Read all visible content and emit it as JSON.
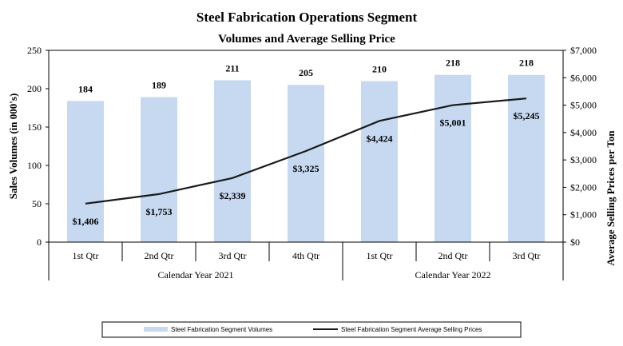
{
  "chart_data": {
    "type": "bar+line",
    "title": "Steel Fabrication  Operations Segment",
    "subtitle": "Volumes and Average Selling Price",
    "categories": [
      "1st Qtr",
      "2nd Qtr",
      "3rd Qtr",
      "4th Qtr",
      "1st Qtr",
      "2nd Qtr",
      "3rd Qtr"
    ],
    "groups": [
      {
        "label": "Calendar Year 2021",
        "count": 4
      },
      {
        "label": "Calendar Year 2022",
        "count": 3
      }
    ],
    "series": [
      {
        "name": "Steel Fabrication Segment Volumes",
        "kind": "bar",
        "axis": "left",
        "color": "#c6d9f1",
        "values": [
          184,
          189,
          211,
          205,
          210,
          218,
          218
        ],
        "labels": [
          "184",
          "189",
          "211",
          "205",
          "210",
          "218",
          "218"
        ]
      },
      {
        "name": "Steel Fabrication Segment Average Selling Prices",
        "kind": "line",
        "axis": "right",
        "color": "#1a1a1a",
        "values": [
          1406,
          1753,
          2339,
          3325,
          4424,
          5001,
          5245
        ],
        "labels": [
          "$1,406",
          "$1,753",
          "$2,339",
          "$3,325",
          "$4,424",
          "$5,001",
          "$5,245"
        ]
      }
    ],
    "left_axis": {
      "label": "Sales Volumes (in 000's)",
      "min": 0,
      "max": 250,
      "ticks": [
        0,
        50,
        100,
        150,
        200,
        250
      ],
      "tick_labels": [
        "0",
        "50",
        "100",
        "150",
        "200",
        "250"
      ]
    },
    "right_axis": {
      "label": "Average Selling Prices per Ton",
      "min": 0,
      "max": 7000,
      "ticks": [
        0,
        1000,
        2000,
        3000,
        4000,
        5000,
        6000,
        7000
      ],
      "tick_labels": [
        "$0",
        "$1,000",
        "$2,000",
        "$3,000",
        "$4,000",
        "$5,000",
        "$6,000",
        "$7,000"
      ]
    },
    "grid": false,
    "legend": "bottom"
  }
}
